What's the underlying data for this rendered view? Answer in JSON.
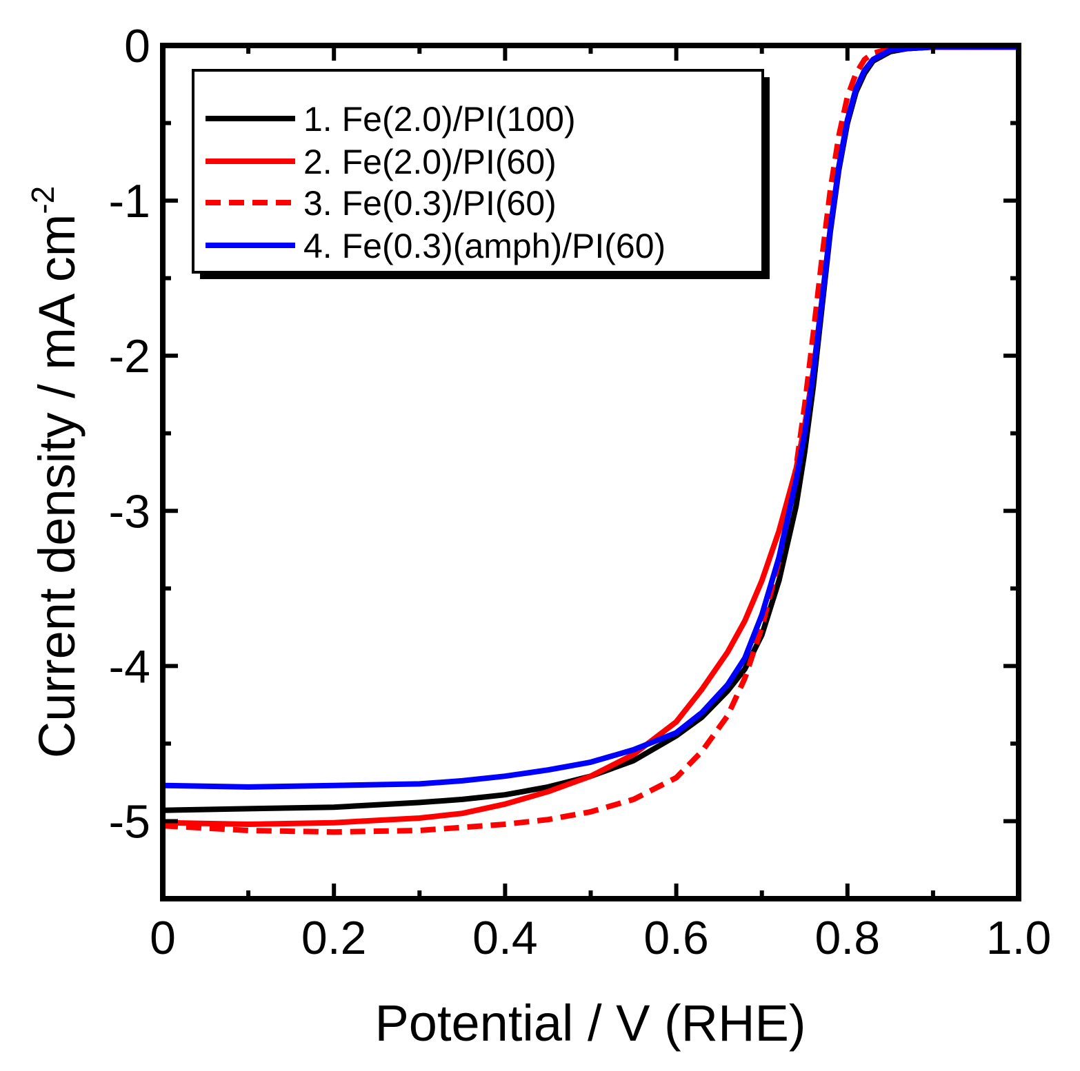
{
  "chart_data": {
    "type": "line",
    "xlabel": "Potential / V (RHE)",
    "ylabel": "Current density / mA cm",
    "ylabel_superscript": "-2",
    "xlim": [
      0,
      1.0
    ],
    "ylim": [
      -5.5,
      0
    ],
    "xticks": [
      "0",
      "0.2",
      "0.4",
      "0.6",
      "0.8",
      "1.0"
    ],
    "xtick_values": [
      0,
      0.2,
      0.4,
      0.6,
      0.8,
      1.0
    ],
    "yticks": [
      "0",
      "-1",
      "-2",
      "-3",
      "-4",
      "-5"
    ],
    "ytick_values": [
      0,
      -1,
      -2,
      -3,
      -4,
      -5
    ],
    "legend_position": "top-left",
    "series": [
      {
        "name": "1. Fe(2.0)/PI(100)",
        "color": "#000000",
        "dash": "solid",
        "x": [
          0.0,
          0.1,
          0.2,
          0.3,
          0.35,
          0.4,
          0.45,
          0.5,
          0.55,
          0.6,
          0.63,
          0.66,
          0.68,
          0.7,
          0.72,
          0.74,
          0.75,
          0.76,
          0.77,
          0.78,
          0.79,
          0.8,
          0.81,
          0.82,
          0.83,
          0.85,
          0.87,
          0.9,
          0.95,
          1.0
        ],
        "y": [
          -4.93,
          -4.92,
          -4.91,
          -4.88,
          -4.86,
          -4.83,
          -4.78,
          -4.71,
          -4.61,
          -4.45,
          -4.33,
          -4.16,
          -4.02,
          -3.8,
          -3.45,
          -2.97,
          -2.62,
          -2.2,
          -1.7,
          -1.2,
          -0.8,
          -0.5,
          -0.3,
          -0.18,
          -0.1,
          -0.04,
          -0.02,
          -0.01,
          -0.01,
          -0.01
        ]
      },
      {
        "name": "2. Fe(2.0)/PI(60)",
        "color": "#ff0000",
        "dash": "solid",
        "x": [
          0.0,
          0.1,
          0.2,
          0.3,
          0.35,
          0.4,
          0.45,
          0.5,
          0.55,
          0.6,
          0.63,
          0.66,
          0.68,
          0.7,
          0.72,
          0.74,
          0.75,
          0.76,
          0.77,
          0.78,
          0.79,
          0.8,
          0.81,
          0.82,
          0.83,
          0.85,
          0.87,
          0.9,
          0.95,
          1.0
        ],
        "y": [
          -5.01,
          -5.02,
          -5.01,
          -4.98,
          -4.95,
          -4.89,
          -4.81,
          -4.71,
          -4.57,
          -4.36,
          -4.15,
          -3.91,
          -3.71,
          -3.45,
          -3.13,
          -2.73,
          -2.45,
          -2.1,
          -1.65,
          -1.18,
          -0.78,
          -0.48,
          -0.28,
          -0.16,
          -0.09,
          -0.03,
          -0.02,
          -0.01,
          -0.01,
          -0.01
        ]
      },
      {
        "name": "3. Fe(0.3)/PI(60)",
        "color": "#ff0000",
        "dash": "dashed",
        "x": [
          0.0,
          0.1,
          0.2,
          0.3,
          0.35,
          0.4,
          0.45,
          0.5,
          0.55,
          0.6,
          0.63,
          0.66,
          0.68,
          0.7,
          0.72,
          0.74,
          0.75,
          0.76,
          0.77,
          0.78,
          0.79,
          0.8,
          0.81,
          0.82,
          0.83,
          0.85,
          0.87,
          0.9,
          0.95,
          1.0
        ],
        "y": [
          -5.03,
          -5.06,
          -5.07,
          -5.06,
          -5.04,
          -5.02,
          -4.99,
          -4.94,
          -4.86,
          -4.72,
          -4.55,
          -4.32,
          -4.08,
          -3.75,
          -3.32,
          -2.72,
          -2.32,
          -1.86,
          -1.38,
          -0.93,
          -0.58,
          -0.33,
          -0.18,
          -0.09,
          -0.05,
          -0.02,
          -0.01,
          -0.01,
          -0.01,
          -0.01
        ]
      },
      {
        "name": "4. Fe(0.3)(amph)/PI(60)",
        "color": "#0000ff",
        "dash": "solid",
        "x": [
          0.0,
          0.1,
          0.2,
          0.3,
          0.35,
          0.4,
          0.45,
          0.5,
          0.55,
          0.6,
          0.63,
          0.66,
          0.68,
          0.7,
          0.72,
          0.74,
          0.75,
          0.76,
          0.77,
          0.78,
          0.79,
          0.8,
          0.81,
          0.82,
          0.83,
          0.85,
          0.87,
          0.9,
          0.95,
          1.0
        ],
        "y": [
          -4.77,
          -4.78,
          -4.77,
          -4.76,
          -4.74,
          -4.71,
          -4.67,
          -4.62,
          -4.54,
          -4.43,
          -4.3,
          -4.12,
          -3.95,
          -3.67,
          -3.3,
          -2.8,
          -2.5,
          -2.12,
          -1.66,
          -1.18,
          -0.78,
          -0.48,
          -0.28,
          -0.16,
          -0.09,
          -0.03,
          -0.02,
          -0.01,
          -0.01,
          -0.01
        ]
      }
    ]
  }
}
